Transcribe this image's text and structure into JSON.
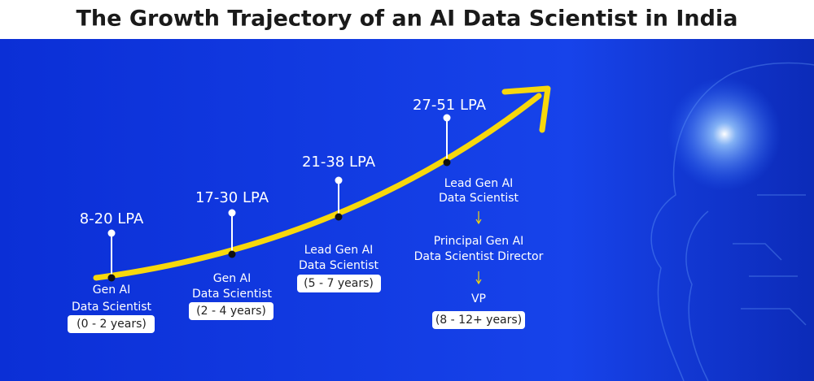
{
  "title": "The Growth Trajectory of an AI Data Scientist in India",
  "stages": [
    {
      "salary": "8-20 LPA",
      "roles": [
        [
          "Gen AI",
          "Data Scientist"
        ]
      ],
      "years": "(0 - 2 years)"
    },
    {
      "salary": "17-30 LPA",
      "roles": [
        [
          "Gen AI",
          "Data Scientist"
        ]
      ],
      "years": "(2 - 4 years)"
    },
    {
      "salary": "21-38 LPA",
      "roles": [
        [
          "Lead Gen AI",
          "Data Scientist"
        ]
      ],
      "years": "(5 - 7 years)"
    },
    {
      "salary": "27-51 LPA",
      "roles": [
        [
          "Lead Gen AI",
          "Data Scientist"
        ],
        [
          "Principal Gen AI",
          "Data Scientist Director"
        ],
        [
          "VP"
        ]
      ],
      "years": "(8 - 12+ years)"
    }
  ]
}
